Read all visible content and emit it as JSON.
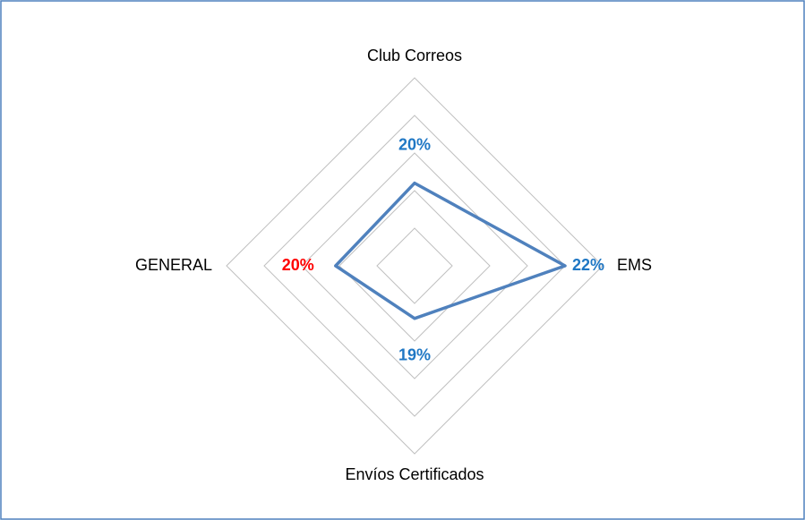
{
  "chart_data": {
    "type": "radar",
    "categories": [
      "Club Correos",
      "EMS",
      "Envíos Certificados",
      "GENERAL"
    ],
    "series": [
      {
        "color": "#4f81bd",
        "values": [
          20.2,
          22,
          19.4,
          20.1
        ],
        "value_labels": [
          "20%",
          "22%",
          "19%",
          "20%"
        ],
        "label_colors": [
          "#1f77c4",
          "#1f77c4",
          "#1f77c4",
          "#ff0000"
        ]
      }
    ],
    "rlim": [
      18,
      23
    ],
    "rticks": [
      19,
      20,
      21,
      22,
      23
    ],
    "grid": true
  }
}
